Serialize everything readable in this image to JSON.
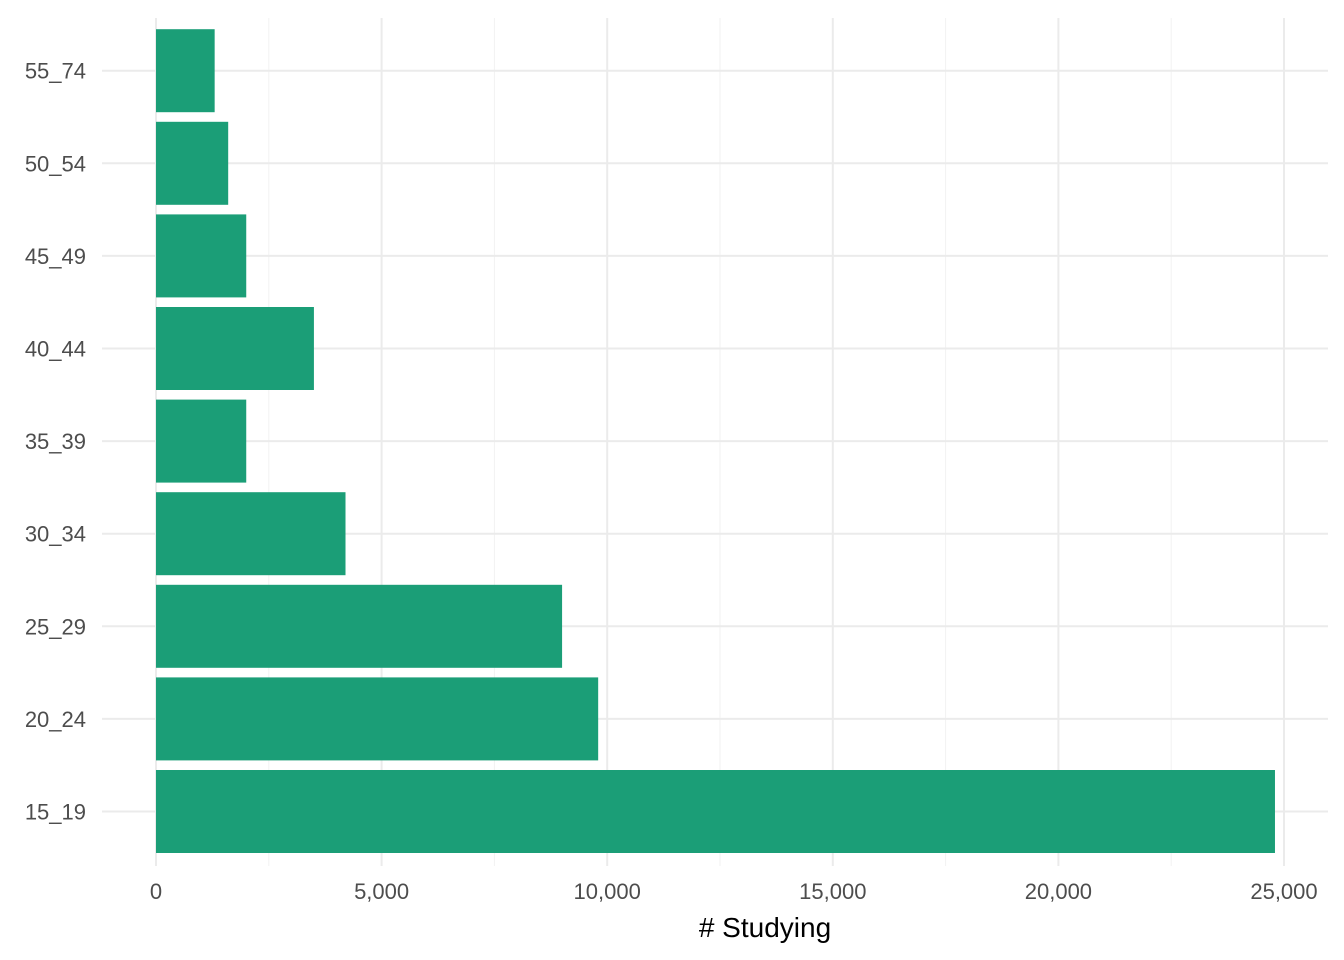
{
  "chart_data": {
    "type": "bar",
    "orientation": "horizontal",
    "categories": [
      "15_19",
      "20_24",
      "25_29",
      "30_34",
      "35_39",
      "40_44",
      "45_49",
      "50_54",
      "55_74"
    ],
    "values": [
      24800,
      9800,
      9000,
      4200,
      2000,
      3500,
      2000,
      1600,
      1300
    ],
    "xlabel": "# Studying",
    "ylabel": "",
    "xlim": [
      0,
      25000
    ],
    "x_ticks": [
      0,
      5000,
      10000,
      15000,
      20000,
      25000
    ],
    "x_tick_labels": [
      "0",
      "5,000",
      "10,000",
      "15,000",
      "20,000",
      "25,000"
    ],
    "grid": true,
    "bar_color": "#1b9e77",
    "grid_color": "#ebebeb"
  }
}
